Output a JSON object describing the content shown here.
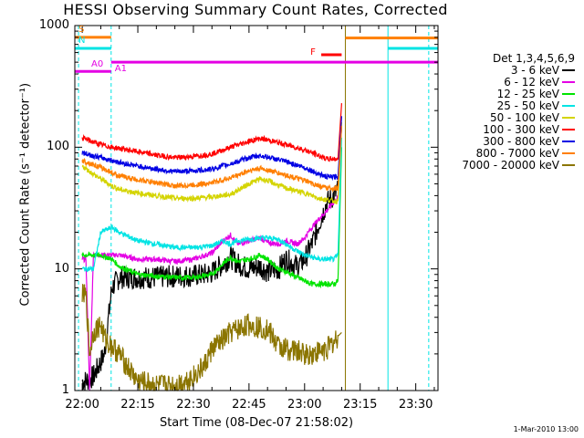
{
  "title": "HESSI Observing Summary Count Rates, Corrected",
  "stamp": "1-Mar-2010 13:00",
  "chart_data": {
    "type": "line",
    "xlabel": "Start Time (08-Dec-07 21:58:02)",
    "ylabel": "Corrected Count Rate (s⁻¹ detector⁻¹)",
    "ylim": [
      1,
      1000
    ],
    "yscale": "log",
    "xlim_minutes": [
      -2,
      96
    ],
    "yticks": [
      "1",
      "10",
      "100",
      "1000"
    ],
    "xticks": [
      {
        "label": "22:00",
        "min": 0
      },
      {
        "label": "22:15",
        "min": 15
      },
      {
        "label": "22:30",
        "min": 30
      },
      {
        "label": "22:45",
        "min": 45
      },
      {
        "label": "23:00",
        "min": 60
      },
      {
        "label": "23:15",
        "min": 75
      },
      {
        "label": "23:30",
        "min": 90
      }
    ],
    "legend_title": "Det 1,3,4,5,6,9",
    "legend_position": "right",
    "series": [
      {
        "name": "3 - 6 keV",
        "color": "#000000",
        "x": [
          0,
          1,
          3,
          6,
          8,
          10,
          15,
          20,
          25,
          30,
          33,
          35,
          38,
          40,
          42,
          45,
          48,
          50,
          53,
          55,
          58,
          60,
          62,
          64,
          66,
          68,
          69,
          70
        ],
        "y": [
          1.2,
          1.2,
          1.3,
          2,
          7,
          8.5,
          8.5,
          8.5,
          8.7,
          8.8,
          9,
          9.3,
          11,
          12.5,
          11,
          10,
          10.5,
          9.5,
          10,
          12,
          10.5,
          12,
          16,
          24,
          35,
          40,
          45,
          150
        ]
      },
      {
        "name": "6 - 12 keV",
        "color": "#e400e4",
        "x": [
          0,
          1,
          2,
          3,
          5,
          8,
          10,
          15,
          20,
          25,
          30,
          35,
          38,
          40,
          42,
          45,
          48,
          50,
          53,
          55,
          58,
          60,
          62,
          64,
          66,
          68,
          69,
          70
        ],
        "y": [
          12,
          12,
          1,
          13,
          13,
          13,
          13,
          12,
          12,
          11.5,
          12,
          13.5,
          17,
          19,
          16,
          17,
          18,
          16.5,
          16,
          17,
          16,
          18,
          22,
          26,
          30,
          36,
          38,
          150
        ]
      },
      {
        "name": "12 - 25 keV",
        "color": "#00e400",
        "x": [
          0,
          3,
          5,
          8,
          10,
          15,
          20,
          25,
          30,
          35,
          38,
          40,
          42,
          45,
          48,
          50,
          53,
          55,
          58,
          60,
          62,
          64,
          66,
          68,
          69,
          70
        ],
        "y": [
          13,
          13,
          13,
          12,
          10.5,
          9,
          8.7,
          8.5,
          8.5,
          9,
          11,
          12.5,
          11.5,
          12,
          13,
          12,
          10,
          9.5,
          8.5,
          8,
          7.5,
          7.5,
          7.5,
          7.5,
          8,
          100
        ]
      },
      {
        "name": "25 - 50 keV",
        "color": "#00e4e4",
        "x": [
          0,
          3,
          5,
          8,
          10,
          15,
          20,
          25,
          30,
          35,
          38,
          40,
          42,
          45,
          48,
          50,
          53,
          55,
          58,
          60,
          62,
          64,
          66,
          68,
          69,
          70
        ],
        "y": [
          10,
          10,
          20,
          22,
          20,
          17,
          16,
          15,
          15,
          15.5,
          17,
          16,
          17,
          17.5,
          18,
          18,
          17.5,
          16,
          14,
          13,
          12.5,
          12,
          12,
          12,
          13,
          120
        ]
      },
      {
        "name": "50 - 100 keV",
        "color": "#d4d400",
        "x": [
          0,
          3,
          5,
          8,
          10,
          15,
          20,
          25,
          30,
          35,
          40,
          45,
          48,
          50,
          55,
          60,
          64,
          66,
          68,
          69,
          70
        ],
        "y": [
          70,
          60,
          55,
          48,
          45,
          42,
          40,
          38,
          38,
          39,
          41,
          50,
          55,
          53,
          46,
          42,
          38,
          37,
          36,
          36,
          160
        ]
      },
      {
        "name": "100 - 300 keV",
        "color": "#ff0000",
        "x": [
          0,
          3,
          5,
          8,
          10,
          15,
          20,
          25,
          30,
          35,
          40,
          45,
          48,
          50,
          55,
          60,
          64,
          66,
          68,
          69,
          70
        ],
        "y": [
          120,
          110,
          105,
          100,
          98,
          92,
          86,
          82,
          84,
          88,
          100,
          112,
          118,
          115,
          105,
          95,
          85,
          80,
          80,
          80,
          230
        ]
      },
      {
        "name": "300 - 800 keV",
        "color": "#0000e4",
        "x": [
          0,
          3,
          5,
          8,
          10,
          15,
          20,
          25,
          30,
          35,
          40,
          45,
          48,
          50,
          55,
          60,
          64,
          66,
          68,
          69,
          70
        ],
        "y": [
          90,
          85,
          82,
          78,
          75,
          70,
          66,
          63,
          64,
          66,
          73,
          82,
          85,
          83,
          76,
          68,
          60,
          57,
          57,
          57,
          180
        ]
      },
      {
        "name": "800 - 7000 keV",
        "color": "#ff7f00",
        "x": [
          0,
          3,
          5,
          8,
          10,
          15,
          20,
          25,
          30,
          35,
          40,
          45,
          48,
          50,
          55,
          60,
          64,
          66,
          68,
          69,
          70
        ],
        "y": [
          78,
          72,
          68,
          62,
          58,
          54,
          51,
          48,
          49,
          51,
          56,
          64,
          67,
          65,
          59,
          53,
          48,
          46,
          46,
          46,
          150
        ]
      },
      {
        "name": "7000 - 20000 keV",
        "color": "#8b7500",
        "x": [
          0,
          1,
          2,
          3,
          5,
          6,
          8,
          10,
          12,
          14,
          15,
          20,
          25,
          30,
          33,
          35,
          38,
          40,
          45,
          50,
          53,
          55,
          58,
          60,
          62,
          64,
          66,
          68,
          69,
          70
        ],
        "y": [
          6,
          6,
          2,
          3,
          3.5,
          2.7,
          2.3,
          2,
          1.6,
          1.3,
          1.2,
          1.1,
          1.1,
          1.3,
          1.6,
          2.2,
          2.6,
          3,
          3.5,
          3.2,
          2.3,
          2.2,
          2.1,
          2,
          2,
          2.1,
          2.2,
          2.5,
          2.8,
          3
        ]
      }
    ],
    "flag_lines": [
      {
        "label": "S",
        "color": "#ff7f00",
        "x": [
          -2,
          7.8
        ],
        "y": 800
      },
      {
        "label": "N",
        "color": "#00e4e4",
        "x": [
          -2,
          7.8
        ],
        "y": 650
      },
      {
        "label": "",
        "color": "#00e4e4",
        "x": [
          82.5,
          96
        ],
        "y": 650
      },
      {
        "label": "A0",
        "color": "#e400e4",
        "x": [
          -2,
          7.8
        ],
        "y": 420
      },
      {
        "label": "A1",
        "color": "#e400e4",
        "x": [
          7.8,
          96
        ],
        "y": 500
      },
      {
        "label": "F",
        "color": "#ff0000",
        "x": [
          64.5,
          70
        ],
        "y": 575
      },
      {
        "label": "",
        "color": "#ff7f00",
        "x": [
          71,
          96
        ],
        "y": 790
      }
    ],
    "vertical_markers": [
      {
        "min": -1,
        "color": "#00e4e4",
        "dashed": true
      },
      {
        "min": 7.8,
        "color": "#00e4e4",
        "dashed": true
      },
      {
        "min": 71,
        "color": "#8b7500",
        "dashed": false
      },
      {
        "min": 82.5,
        "color": "#00e4e4",
        "dashed": false
      },
      {
        "min": 93.5,
        "color": "#00e4e4",
        "dashed": true
      }
    ]
  }
}
